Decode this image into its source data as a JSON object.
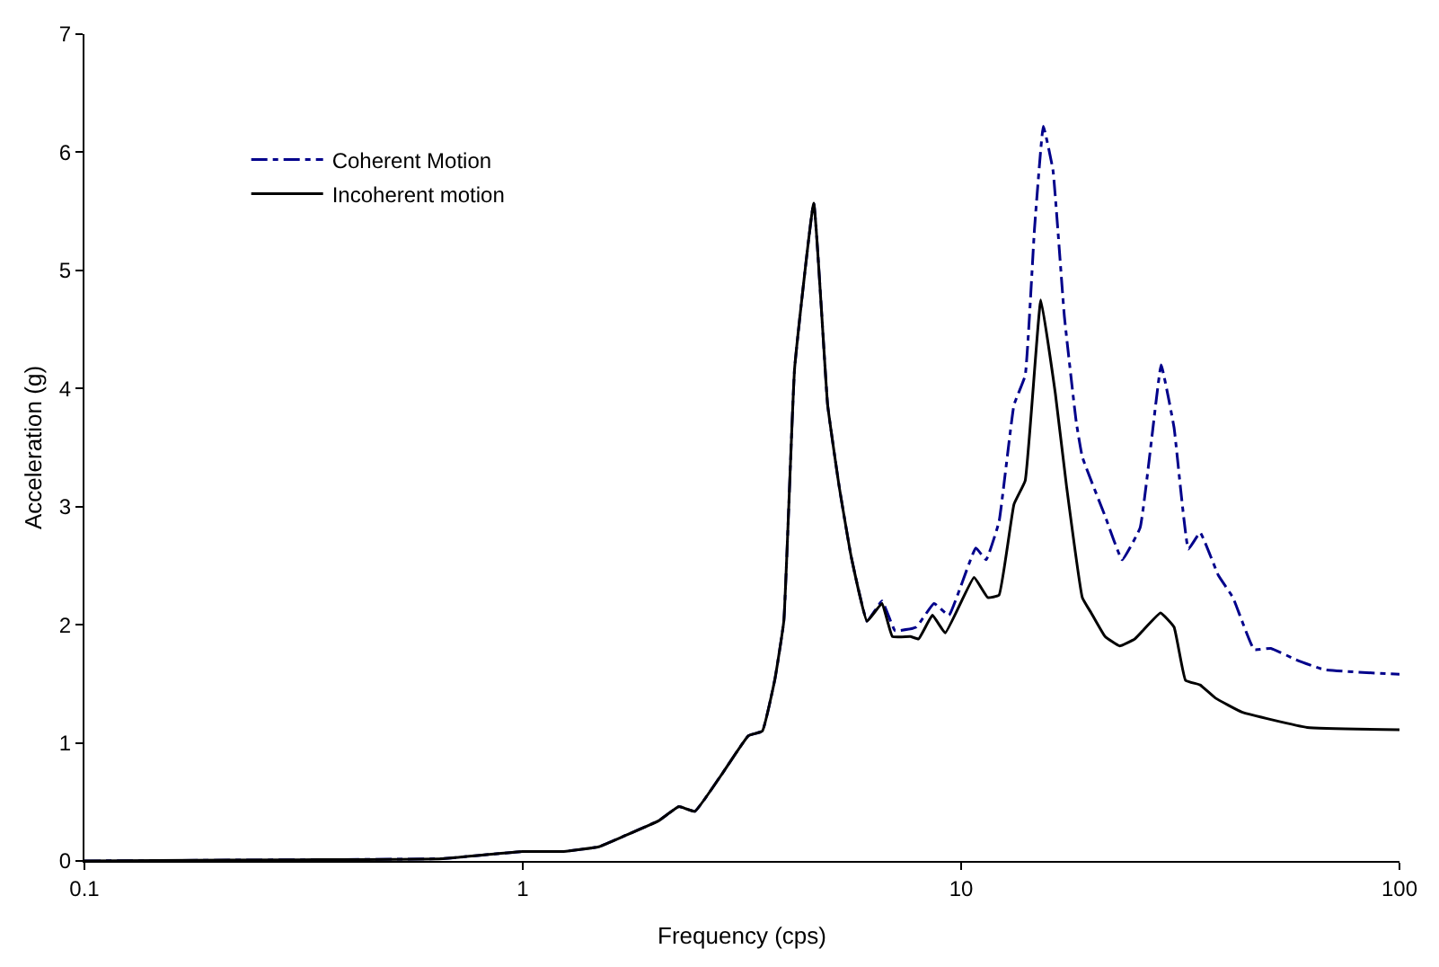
{
  "chart_data": {
    "type": "line",
    "xlabel": "Frequency (cps)",
    "ylabel": "Acceleration (g)",
    "log": "x",
    "xlim": [
      0.1,
      100
    ],
    "xticks": [
      0.1,
      1,
      10,
      100
    ],
    "ylim": [
      0,
      7
    ],
    "yticks": [
      0,
      1,
      2,
      3,
      4,
      5,
      6,
      7
    ],
    "legend": "top left",
    "marker": "none",
    "series": [
      {
        "name": "Coherent Motion",
        "color": "#00008b",
        "line_style": "dashdot",
        "x": [
          0.1,
          0.312,
          0.657,
          1.0,
          1.24,
          1.49,
          1.7,
          2.04,
          2.27,
          2.47,
          2.84,
          3.27,
          3.52,
          3.76,
          3.94,
          4.17,
          4.61,
          4.96,
          5.27,
          5.61,
          6.1,
          6.6,
          7.07,
          7.9,
          8.67,
          9.38,
          10.8,
          11.4,
          12.2,
          13.2,
          14.0,
          14.7,
          15.4,
          16.2,
          17.2,
          18.3,
          18.9,
          21.3,
          23.3,
          25.6,
          27.3,
          28.6,
          30.6,
          33.0,
          35.1,
          38.6,
          41.7,
          46.6,
          50.9,
          58.4,
          67.2,
          100
        ],
        "values": [
          0.0,
          0.01,
          0.02,
          0.08,
          0.08,
          0.12,
          0.21,
          0.34,
          0.46,
          0.42,
          0.73,
          1.06,
          1.1,
          1.54,
          2.03,
          4.17,
          5.57,
          3.86,
          3.17,
          2.58,
          2.03,
          2.2,
          1.95,
          1.98,
          2.18,
          2.08,
          2.65,
          2.55,
          2.87,
          3.86,
          4.11,
          5.35,
          6.22,
          5.85,
          4.61,
          3.72,
          3.42,
          2.92,
          2.55,
          2.82,
          3.62,
          4.2,
          3.67,
          2.64,
          2.78,
          2.42,
          2.23,
          1.79,
          1.8,
          1.7,
          1.62,
          1.58
        ]
      },
      {
        "name": "Incoherent motion",
        "color": "#000000",
        "line_style": "solid",
        "x": [
          0.1,
          0.312,
          0.657,
          1.0,
          1.24,
          1.49,
          1.7,
          2.04,
          2.27,
          2.47,
          2.84,
          3.27,
          3.52,
          3.76,
          3.94,
          4.17,
          4.61,
          4.96,
          5.27,
          5.61,
          6.1,
          6.6,
          6.97,
          7.66,
          8.0,
          8.6,
          9.2,
          10.7,
          11.5,
          12.2,
          13.2,
          14.0,
          15.2,
          16.4,
          17.4,
          18.9,
          19.8,
          21.3,
          23.0,
          24.9,
          28.5,
          30.6,
          32.5,
          35.1,
          38.0,
          43.7,
          61.6,
          100
        ],
        "values": [
          0.0,
          0.01,
          0.02,
          0.08,
          0.08,
          0.12,
          0.21,
          0.34,
          0.46,
          0.42,
          0.73,
          1.06,
          1.1,
          1.54,
          2.03,
          4.17,
          5.57,
          3.86,
          3.17,
          2.58,
          2.03,
          2.18,
          1.9,
          1.9,
          1.88,
          2.08,
          1.93,
          2.4,
          2.23,
          2.25,
          3.02,
          3.22,
          4.75,
          3.96,
          3.17,
          2.23,
          2.1,
          1.9,
          1.82,
          1.88,
          2.1,
          1.98,
          1.53,
          1.49,
          1.38,
          1.26,
          1.13,
          1.11
        ]
      }
    ]
  }
}
